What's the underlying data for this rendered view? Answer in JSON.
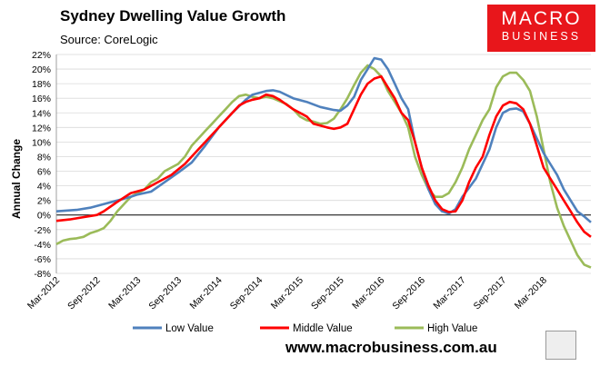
{
  "header": {
    "title": "Sydney Dwelling Value Growth",
    "source": "Source: CoreLogic"
  },
  "logo": {
    "line1": "MACRO",
    "line2": "BUSINESS"
  },
  "footer": {
    "url": "www.macrobusiness.com.au"
  },
  "colors": {
    "low": "#4f81bd",
    "middle": "#ff0000",
    "high": "#9bbb59",
    "brand": "#e8161b"
  },
  "chart_data": {
    "type": "line",
    "title": "Sydney Dwelling Value Growth",
    "xlabel": "",
    "ylabel": "Annual Change",
    "ylim": [
      -8,
      22
    ],
    "yticks": [
      22,
      20,
      18,
      16,
      14,
      12,
      10,
      8,
      6,
      4,
      2,
      0,
      -2,
      -4,
      -6,
      -8
    ],
    "ytick_labels": [
      "22%",
      "20%",
      "18%",
      "16%",
      "14%",
      "12%",
      "10%",
      "8%",
      "6%",
      "4%",
      "2%",
      "0%",
      "-2%",
      "-4%",
      "-6%",
      "-8%"
    ],
    "x_start": "Mar-2012",
    "x_months": 77,
    "xtick_labels": [
      "Mar-2012",
      "Sep-2012",
      "Mar-2013",
      "Sep-2013",
      "Mar-2014",
      "Sep-2014",
      "Mar-2015",
      "Sep-2015",
      "Mar-2016",
      "Sep-2016",
      "Mar-2017",
      "Sep-2017",
      "Mar-2018"
    ],
    "grid": true,
    "legend_position": "bottom",
    "series": [
      {
        "name": "Low Value",
        "color": "#4f81bd",
        "points": [
          [
            0,
            0.5
          ],
          [
            3,
            0.7
          ],
          [
            5,
            1.0
          ],
          [
            7,
            1.5
          ],
          [
            9,
            2.0
          ],
          [
            11,
            2.5
          ],
          [
            12,
            2.8
          ],
          [
            14,
            3.2
          ],
          [
            16,
            4.5
          ],
          [
            18,
            5.8
          ],
          [
            20,
            7.2
          ],
          [
            22,
            9.5
          ],
          [
            24,
            12.0
          ],
          [
            26,
            14.0
          ],
          [
            28,
            15.8
          ],
          [
            29,
            16.5
          ],
          [
            31,
            17.0
          ],
          [
            32,
            17.1
          ],
          [
            33,
            16.9
          ],
          [
            35,
            16.0
          ],
          [
            37,
            15.5
          ],
          [
            39,
            14.8
          ],
          [
            41,
            14.4
          ],
          [
            42,
            14.3
          ],
          [
            43,
            15.0
          ],
          [
            44,
            16.2
          ],
          [
            45,
            18.5
          ],
          [
            46,
            20.0
          ],
          [
            47,
            21.5
          ],
          [
            48,
            21.3
          ],
          [
            49,
            20.0
          ],
          [
            50,
            18.0
          ],
          [
            51,
            16.0
          ],
          [
            52,
            14.5
          ],
          [
            53,
            10.0
          ],
          [
            54,
            6.5
          ],
          [
            55,
            3.5
          ],
          [
            56,
            1.5
          ],
          [
            57,
            0.5
          ],
          [
            58,
            0.2
          ],
          [
            59,
            0.8
          ],
          [
            60,
            2.5
          ],
          [
            62,
            5.0
          ],
          [
            64,
            9.0
          ],
          [
            65,
            12.0
          ],
          [
            66,
            14.0
          ],
          [
            67,
            14.5
          ],
          [
            68,
            14.6
          ],
          [
            69,
            14.2
          ],
          [
            70,
            12.5
          ],
          [
            71,
            10.5
          ],
          [
            72,
            8.5
          ],
          [
            73,
            7.0
          ],
          [
            74,
            5.5
          ],
          [
            75,
            3.5
          ],
          [
            76,
            2.0
          ],
          [
            77,
            0.5
          ],
          [
            78,
            -0.2
          ],
          [
            79,
            -1.0
          ]
        ]
      },
      {
        "name": "Middle Value",
        "color": "#ff0000",
        "points": [
          [
            0,
            -0.8
          ],
          [
            2,
            -0.6
          ],
          [
            4,
            -0.3
          ],
          [
            6,
            0.0
          ],
          [
            7,
            0.5
          ],
          [
            9,
            1.8
          ],
          [
            11,
            3.0
          ],
          [
            13,
            3.5
          ],
          [
            15,
            4.5
          ],
          [
            17,
            5.5
          ],
          [
            19,
            7.0
          ],
          [
            21,
            9.0
          ],
          [
            23,
            11.0
          ],
          [
            25,
            13.0
          ],
          [
            27,
            15.0
          ],
          [
            28,
            15.5
          ],
          [
            29,
            15.8
          ],
          [
            30,
            16.0
          ],
          [
            31,
            16.5
          ],
          [
            32,
            16.3
          ],
          [
            33,
            15.8
          ],
          [
            35,
            14.5
          ],
          [
            37,
            13.5
          ],
          [
            38,
            12.5
          ],
          [
            40,
            12.0
          ],
          [
            41,
            11.8
          ],
          [
            42,
            12.0
          ],
          [
            43,
            12.5
          ],
          [
            44,
            14.5
          ],
          [
            45,
            16.5
          ],
          [
            46,
            18.0
          ],
          [
            47,
            18.7
          ],
          [
            48,
            19.0
          ],
          [
            49,
            17.5
          ],
          [
            50,
            16.0
          ],
          [
            51,
            14.0
          ],
          [
            52,
            13.0
          ],
          [
            53,
            10.0
          ],
          [
            54,
            6.5
          ],
          [
            55,
            4.0
          ],
          [
            56,
            2.0
          ],
          [
            57,
            0.8
          ],
          [
            58,
            0.4
          ],
          [
            59,
            0.5
          ],
          [
            60,
            2.0
          ],
          [
            61,
            4.5
          ],
          [
            62,
            6.5
          ],
          [
            63,
            8.0
          ],
          [
            64,
            11.0
          ],
          [
            65,
            13.5
          ],
          [
            66,
            15.0
          ],
          [
            67,
            15.5
          ],
          [
            68,
            15.3
          ],
          [
            69,
            14.5
          ],
          [
            70,
            12.5
          ],
          [
            71,
            9.5
          ],
          [
            72,
            6.5
          ],
          [
            73,
            5.0
          ],
          [
            74,
            3.5
          ],
          [
            75,
            2.0
          ],
          [
            76,
            0.5
          ],
          [
            77,
            -1.0
          ],
          [
            78,
            -2.3
          ],
          [
            79,
            -3.0
          ]
        ]
      },
      {
        "name": "High Value",
        "color": "#9bbb59",
        "points": [
          [
            0,
            -4.0
          ],
          [
            1,
            -3.5
          ],
          [
            2,
            -3.3
          ],
          [
            3,
            -3.2
          ],
          [
            4,
            -3.0
          ],
          [
            5,
            -2.5
          ],
          [
            6,
            -2.2
          ],
          [
            7,
            -1.8
          ],
          [
            8,
            -0.8
          ],
          [
            9,
            0.5
          ],
          [
            10,
            1.5
          ],
          [
            11,
            2.5
          ],
          [
            12,
            3.0
          ],
          [
            13,
            3.5
          ],
          [
            14,
            4.5
          ],
          [
            15,
            5.0
          ],
          [
            16,
            6.0
          ],
          [
            17,
            6.5
          ],
          [
            18,
            7.0
          ],
          [
            19,
            8.0
          ],
          [
            20,
            9.5
          ],
          [
            21,
            10.5
          ],
          [
            22,
            11.5
          ],
          [
            23,
            12.5
          ],
          [
            24,
            13.5
          ],
          [
            25,
            14.5
          ],
          [
            26,
            15.5
          ],
          [
            27,
            16.3
          ],
          [
            28,
            16.5
          ],
          [
            29,
            16.2
          ],
          [
            30,
            16.0
          ],
          [
            31,
            16.2
          ],
          [
            32,
            16.0
          ],
          [
            33,
            15.6
          ],
          [
            34,
            15.2
          ],
          [
            35,
            14.5
          ],
          [
            36,
            13.5
          ],
          [
            37,
            13.0
          ],
          [
            38,
            12.8
          ],
          [
            39,
            12.5
          ],
          [
            40,
            12.6
          ],
          [
            41,
            13.2
          ],
          [
            42,
            14.5
          ],
          [
            43,
            16.0
          ],
          [
            44,
            17.8
          ],
          [
            45,
            19.5
          ],
          [
            46,
            20.5
          ],
          [
            47,
            20.0
          ],
          [
            48,
            19.0
          ],
          [
            49,
            17.0
          ],
          [
            50,
            15.5
          ],
          [
            51,
            14.0
          ],
          [
            52,
            12.0
          ],
          [
            53,
            8.0
          ],
          [
            54,
            5.5
          ],
          [
            55,
            3.5
          ],
          [
            56,
            2.5
          ],
          [
            57,
            2.5
          ],
          [
            58,
            3.0
          ],
          [
            59,
            4.5
          ],
          [
            60,
            6.5
          ],
          [
            61,
            9.0
          ],
          [
            62,
            11.0
          ],
          [
            63,
            13.0
          ],
          [
            64,
            14.5
          ],
          [
            65,
            17.5
          ],
          [
            66,
            19.0
          ],
          [
            67,
            19.5
          ],
          [
            68,
            19.5
          ],
          [
            69,
            18.5
          ],
          [
            70,
            17.0
          ],
          [
            71,
            13.5
          ],
          [
            72,
            9.0
          ],
          [
            73,
            4.5
          ],
          [
            74,
            1.0
          ],
          [
            75,
            -1.5
          ],
          [
            76,
            -3.5
          ],
          [
            77,
            -5.5
          ],
          [
            78,
            -6.8
          ],
          [
            79,
            -7.2
          ]
        ]
      }
    ]
  }
}
